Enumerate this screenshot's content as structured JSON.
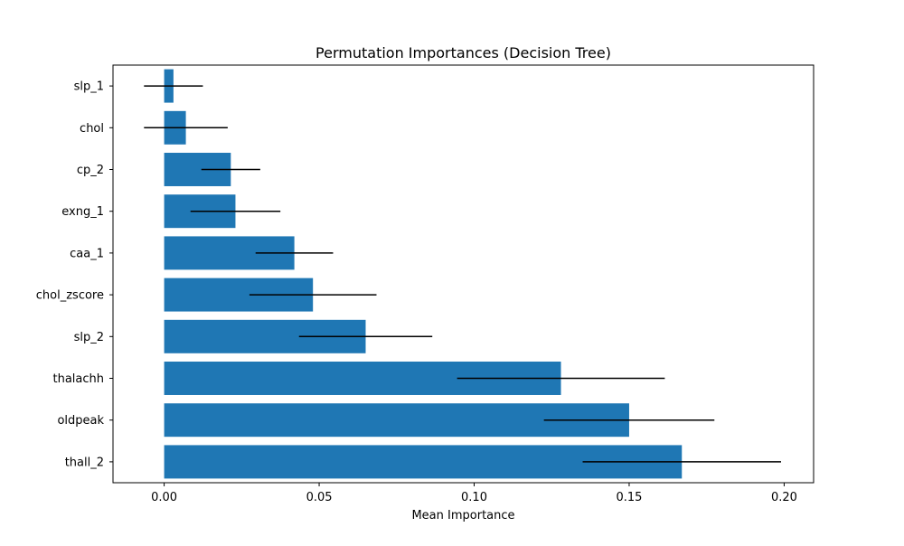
{
  "chart_data": {
    "type": "bar",
    "orientation": "horizontal",
    "title": "Permutation Importances (Decision Tree)",
    "xlabel": "Mean Importance",
    "ylabel": "",
    "categories": [
      "slp_1",
      "chol",
      "cp_2",
      "exng_1",
      "caa_1",
      "chol_zscore",
      "slp_2",
      "thalachh",
      "oldpeak",
      "thall_2"
    ],
    "values": [
      0.003,
      0.007,
      0.0215,
      0.023,
      0.042,
      0.048,
      0.065,
      0.128,
      0.15,
      0.167
    ],
    "errors": [
      0.0095,
      0.0135,
      0.0095,
      0.0145,
      0.0125,
      0.0205,
      0.0215,
      0.0335,
      0.0275,
      0.032
    ],
    "xlim": [
      -0.0165,
      0.2095
    ],
    "xticks": [
      0.0,
      0.05,
      0.1,
      0.15,
      0.2
    ],
    "xtick_labels": [
      "0.00",
      "0.05",
      "0.10",
      "0.15",
      "0.20"
    ],
    "grid": false,
    "legend": "none",
    "bar_color": "#1f77b4",
    "error_color": "#000000"
  }
}
